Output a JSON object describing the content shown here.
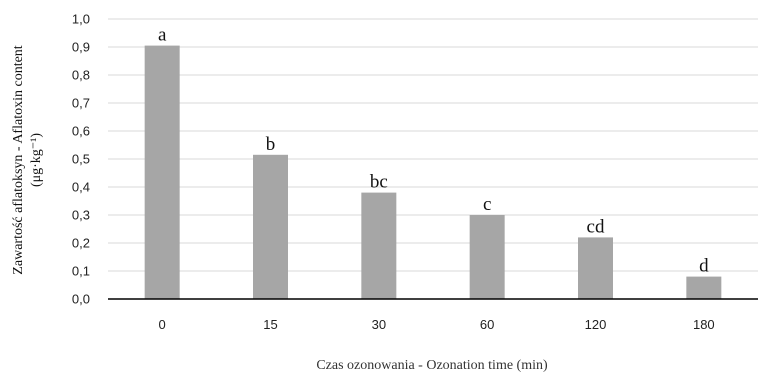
{
  "chart_data": {
    "type": "bar",
    "categories": [
      "0",
      "15",
      "30",
      "60",
      "120",
      "180"
    ],
    "values": [
      0.905,
      0.515,
      0.38,
      0.3,
      0.22,
      0.08
    ],
    "bar_labels": [
      "a",
      "b",
      "bc",
      "c",
      "cd",
      "d"
    ],
    "xlabel": "Czas ozonowania - Ozonation time (min)",
    "ylabel_line1": "Zawartość aflatoksyn - Aflatoxin content",
    "ylabel_line2": "(μg·kg⁻¹)",
    "ylim": [
      0,
      1.0
    ],
    "yticks": [
      "0,0",
      "0,1",
      "0,2",
      "0,3",
      "0,4",
      "0,5",
      "0,6",
      "0,7",
      "0,8",
      "0,9",
      "1,0"
    ],
    "grid": true,
    "bar_color": "#a6a6a6"
  }
}
